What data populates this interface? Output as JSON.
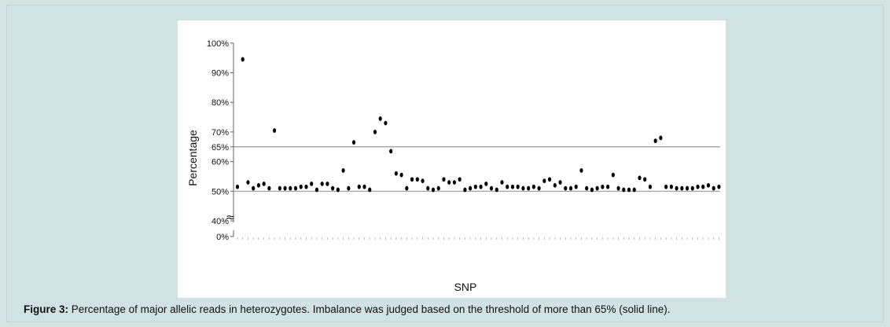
{
  "caption": {
    "label": "Figure 3:",
    "text": "Percentage of major allelic reads in heterozygotes. Imbalance was judged based on the threshold of more than 65% (solid line)."
  },
  "chart_data": {
    "type": "scatter",
    "title": "",
    "xlabel": "SNP",
    "ylabel": "Percentage",
    "axis_break_symbol": "≈",
    "y_ticks": [
      "100%",
      "90%",
      "80%",
      "70%",
      "65%",
      "60%",
      "50%",
      "40%",
      "0%"
    ],
    "y_tick_values": [
      100,
      90,
      80,
      70,
      65,
      60,
      50,
      40,
      0
    ],
    "ylim": [
      0,
      100
    ],
    "axis_break": [
      0,
      40
    ],
    "reference_lines": [
      65,
      50
    ],
    "threshold": 65,
    "grid": false,
    "marker_color": "#000000",
    "line_color": "#999999",
    "values": [
      51.5,
      94.5,
      53,
      51,
      52,
      52.5,
      51,
      70.5,
      51,
      51,
      51,
      51,
      51.5,
      51.5,
      52.5,
      50.5,
      52.5,
      52.5,
      51,
      50.5,
      57,
      51,
      66.5,
      51.5,
      51.5,
      50.5,
      70,
      74.5,
      73,
      63.5,
      56,
      55.5,
      51,
      54,
      54,
      53.5,
      51,
      50.5,
      51,
      54,
      53,
      53,
      54,
      50.5,
      51,
      51.5,
      51.5,
      52.5,
      51,
      50.5,
      53,
      51.5,
      51.5,
      51.5,
      51,
      51,
      51.5,
      51,
      53.5,
      54,
      52,
      53,
      51,
      51,
      51.5,
      57,
      51,
      50.5,
      51,
      51.5,
      51.5,
      55.5,
      51,
      50.5,
      50.5,
      50.5,
      54.5,
      54,
      51.5,
      67,
      68,
      51.5,
      51.5,
      51,
      51,
      51,
      51,
      51.5,
      51.5,
      52,
      51,
      51.5
    ]
  }
}
